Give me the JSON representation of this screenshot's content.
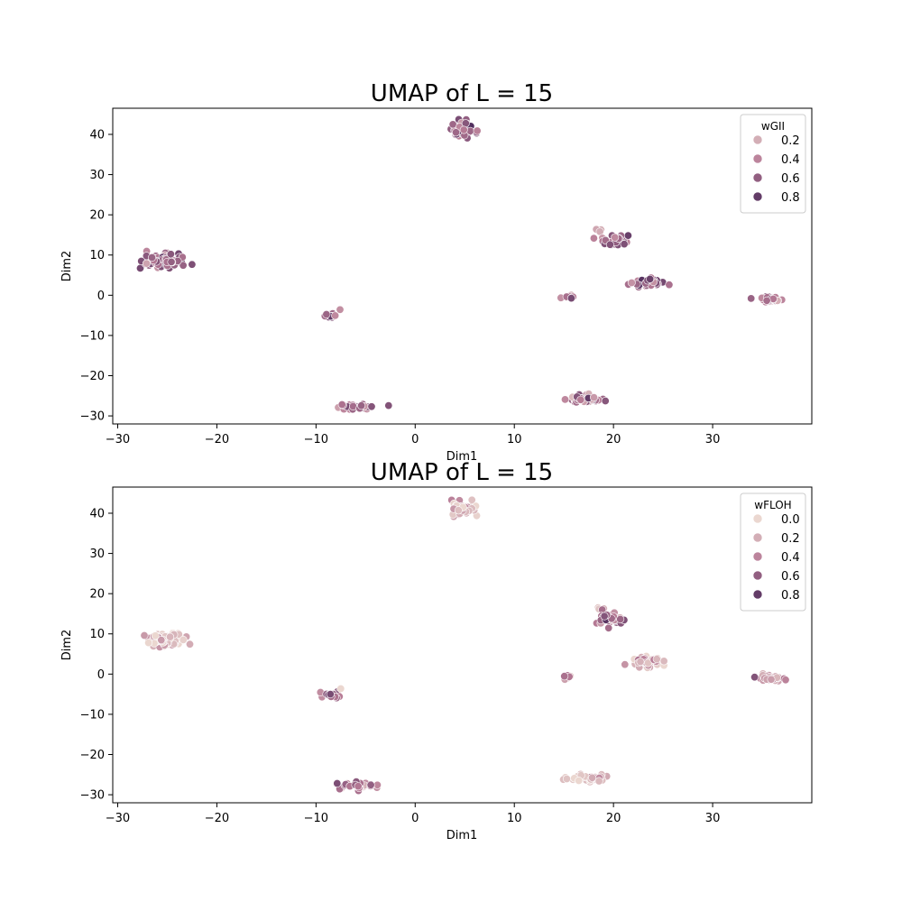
{
  "chart_data": [
    {
      "type": "scatter",
      "title": "UMAP of L = 15",
      "xlabel": "Dim1",
      "ylabel": "Dim2",
      "xlim": [
        -30.5,
        40
      ],
      "ylim": [
        -32,
        46.5
      ],
      "xticks": [
        -30,
        -20,
        -10,
        0,
        10,
        20,
        30
      ],
      "yticks": [
        -30,
        -20,
        -10,
        0,
        10,
        20,
        30,
        40
      ],
      "grid": false,
      "legend": {
        "title": "wGII",
        "placement": "top-right",
        "entries": [
          {
            "label": "0.2",
            "value": 0.2
          },
          {
            "label": "0.4",
            "value": 0.4
          },
          {
            "label": "0.6",
            "value": 0.6
          },
          {
            "label": "0.8",
            "value": 0.8
          }
        ]
      },
      "colorscale": {
        "min": 0.0,
        "max": 0.9,
        "low": "#ebd7d0",
        "mid": "#b67a95",
        "high": "#4b2a5a"
      },
      "clusters": [
        {
          "x": 4.8,
          "y": 41.3,
          "sx": 0.7,
          "sy": 0.9,
          "n": 50,
          "mean": 0.55
        },
        {
          "x": -25.3,
          "y": 8.5,
          "sx": 1.0,
          "sy": 0.8,
          "n": 95,
          "mean": 0.55
        },
        {
          "x": -8.5,
          "y": -5.2,
          "sx": 0.4,
          "sy": 0.4,
          "n": 16,
          "mean": 0.6
        },
        {
          "x": -7.6,
          "y": -3.6,
          "sx": 0.1,
          "sy": 0.1,
          "n": 1,
          "mean": 0.25
        },
        {
          "x": -6.0,
          "y": -27.8,
          "sx": 1.0,
          "sy": 0.4,
          "n": 30,
          "mean": 0.55
        },
        {
          "x": 17.3,
          "y": -25.8,
          "sx": 0.9,
          "sy": 0.5,
          "n": 40,
          "mean": 0.5
        },
        {
          "x": 15.5,
          "y": -0.5,
          "sx": 0.3,
          "sy": 0.3,
          "n": 8,
          "mean": 0.4
        },
        {
          "x": 18.6,
          "y": 16.2,
          "sx": 0.2,
          "sy": 0.2,
          "n": 4,
          "mean": 0.2
        },
        {
          "x": 20.0,
          "y": 13.7,
          "sx": 0.6,
          "sy": 0.6,
          "n": 30,
          "mean": 0.6
        },
        {
          "x": 23.5,
          "y": 3.0,
          "sx": 0.8,
          "sy": 0.6,
          "n": 55,
          "mean": 0.6
        },
        {
          "x": 35.8,
          "y": -1.0,
          "sx": 0.6,
          "sy": 0.4,
          "n": 35,
          "mean": 0.5
        },
        {
          "x": 34.1,
          "y": -0.8,
          "sx": 0.1,
          "sy": 0.1,
          "n": 1,
          "mean": 0.6
        }
      ]
    },
    {
      "type": "scatter",
      "title": "UMAP of L = 15",
      "xlabel": "Dim1",
      "ylabel": "Dim2",
      "xlim": [
        -30.5,
        40
      ],
      "ylim": [
        -32,
        46.5
      ],
      "xticks": [
        -30,
        -20,
        -10,
        0,
        10,
        20,
        30
      ],
      "yticks": [
        -30,
        -20,
        -10,
        0,
        10,
        20,
        30,
        40
      ],
      "grid": false,
      "legend": {
        "title": "wFLOH",
        "placement": "top-right",
        "entries": [
          {
            "label": "0.0",
            "value": 0.0
          },
          {
            "label": "0.2",
            "value": 0.2
          },
          {
            "label": "0.4",
            "value": 0.4
          },
          {
            "label": "0.6",
            "value": 0.6
          },
          {
            "label": "0.8",
            "value": 0.8
          }
        ]
      },
      "colorscale": {
        "min": 0.0,
        "max": 0.9,
        "low": "#ebd7d0",
        "mid": "#b67a95",
        "high": "#4b2a5a"
      },
      "clusters": [
        {
          "x": 4.8,
          "y": 41.3,
          "sx": 0.7,
          "sy": 0.9,
          "n": 50,
          "mean": 0.15
        },
        {
          "x": -25.3,
          "y": 8.5,
          "sx": 1.0,
          "sy": 0.8,
          "n": 95,
          "mean": 0.12
        },
        {
          "x": -8.5,
          "y": -5.2,
          "sx": 0.4,
          "sy": 0.4,
          "n": 16,
          "mean": 0.55
        },
        {
          "x": -7.6,
          "y": -3.6,
          "sx": 0.1,
          "sy": 0.1,
          "n": 1,
          "mean": 0.2
        },
        {
          "x": -6.0,
          "y": -27.8,
          "sx": 1.0,
          "sy": 0.4,
          "n": 30,
          "mean": 0.45
        },
        {
          "x": 17.3,
          "y": -25.8,
          "sx": 0.9,
          "sy": 0.5,
          "n": 40,
          "mean": 0.15
        },
        {
          "x": 15.5,
          "y": -0.5,
          "sx": 0.3,
          "sy": 0.3,
          "n": 8,
          "mean": 0.3
        },
        {
          "x": 18.6,
          "y": 16.2,
          "sx": 0.2,
          "sy": 0.2,
          "n": 4,
          "mean": 0.3
        },
        {
          "x": 20.0,
          "y": 13.7,
          "sx": 0.6,
          "sy": 0.6,
          "n": 30,
          "mean": 0.5
        },
        {
          "x": 23.5,
          "y": 3.0,
          "sx": 0.8,
          "sy": 0.6,
          "n": 55,
          "mean": 0.2
        },
        {
          "x": 35.8,
          "y": -1.0,
          "sx": 0.6,
          "sy": 0.4,
          "n": 35,
          "mean": 0.3
        },
        {
          "x": 34.1,
          "y": -0.8,
          "sx": 0.1,
          "sy": 0.1,
          "n": 1,
          "mean": 0.55
        }
      ]
    }
  ]
}
